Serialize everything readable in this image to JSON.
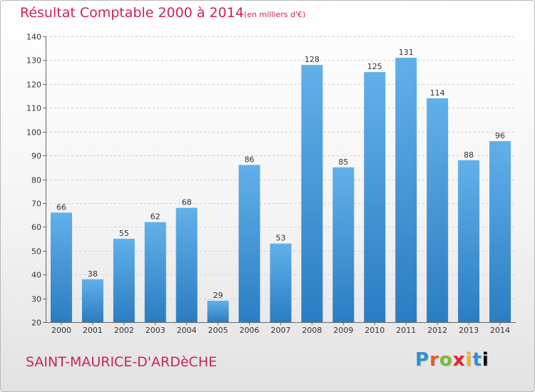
{
  "title": "Résultat Comptable 2000 à 2014",
  "subtitle": "(en milliers d'€)",
  "place": "SAINT-MAURICE-D'ARDèCHE",
  "logo": [
    "P",
    "r",
    "o",
    "x",
    "i",
    "t",
    "i"
  ],
  "colors": {
    "title": "#c8245a",
    "bar_top": "#62b0ea",
    "bar_bottom": "#2b7dc2"
  },
  "chart_data": {
    "type": "bar",
    "title": "Résultat Comptable 2000 à 2014",
    "subtitle": "(en milliers d'€)",
    "categories": [
      "2000",
      "2001",
      "2002",
      "2003",
      "2004",
      "2005",
      "2006",
      "2007",
      "2008",
      "2009",
      "2010",
      "2011",
      "2012",
      "2013",
      "2014"
    ],
    "values": [
      66,
      38,
      55,
      62,
      68,
      29,
      86,
      53,
      128,
      85,
      125,
      131,
      114,
      88,
      96
    ],
    "ylim": [
      20,
      140
    ],
    "yticks": [
      20,
      30,
      40,
      50,
      60,
      70,
      80,
      90,
      100,
      110,
      120,
      130,
      140
    ],
    "grid": true
  }
}
